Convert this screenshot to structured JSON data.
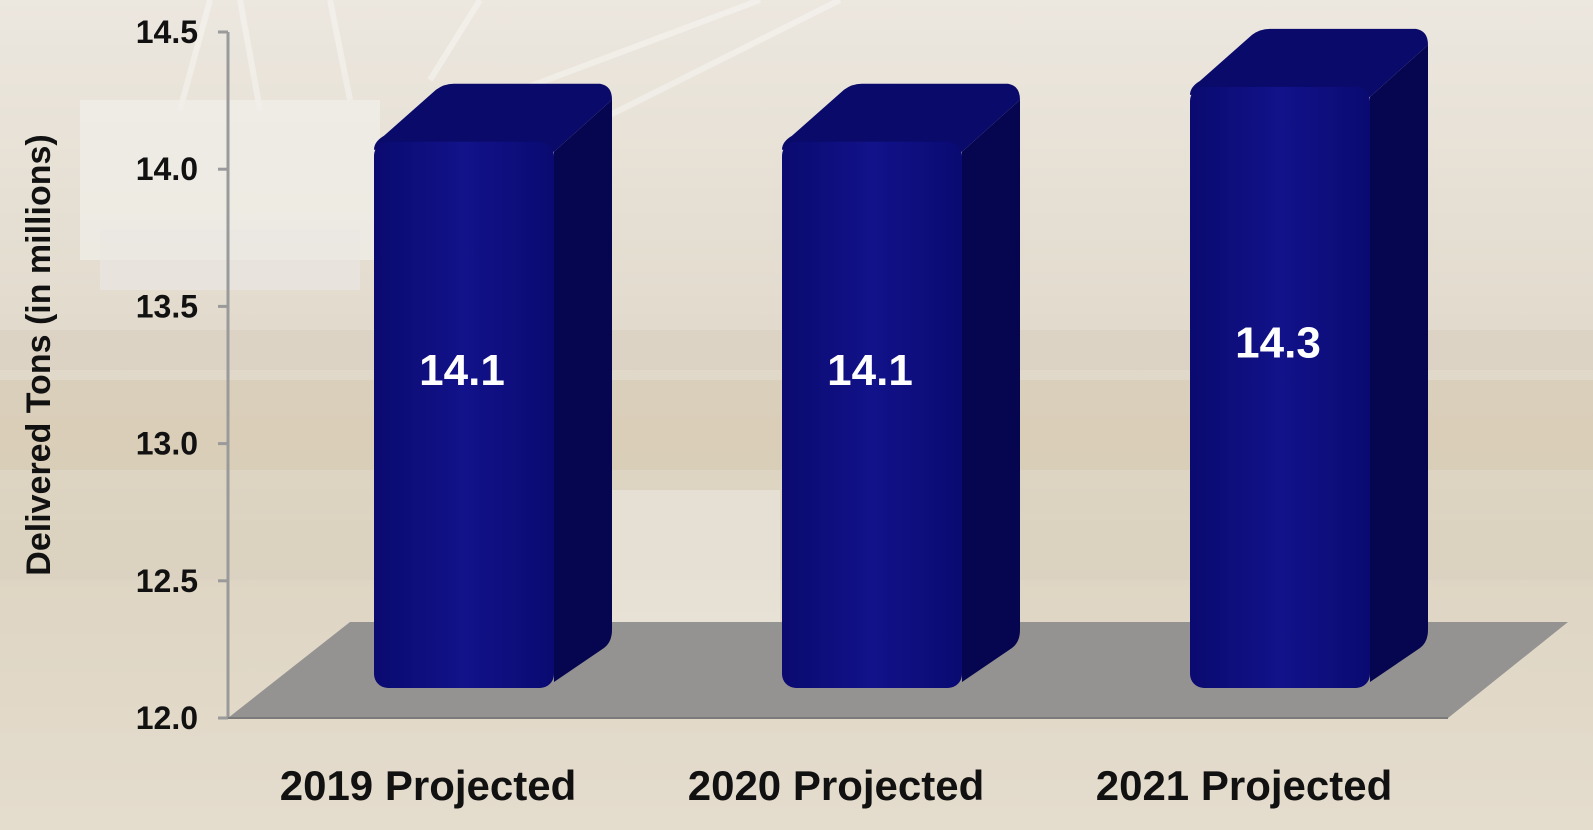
{
  "chart_data": {
    "type": "bar",
    "categories": [
      "2019 Projected",
      "2020 Projected",
      "2021 Projected"
    ],
    "values": [
      14.1,
      14.1,
      14.3
    ],
    "data_labels": [
      "14.1",
      "14.1",
      "14.3"
    ],
    "title": "",
    "xlabel": "",
    "ylabel": "Delivered Tons (in millions)",
    "ylim": [
      12.0,
      14.5
    ],
    "yticks": [
      12.0,
      12.5,
      13.0,
      13.5,
      14.0,
      14.5
    ],
    "ytick_labels": [
      "12.0",
      "12.5",
      "13.0",
      "13.5",
      "14.0",
      "14.5"
    ],
    "grid": false,
    "legend": "none",
    "style": "3d-bars"
  },
  "colors": {
    "bar_front": "#0d0d80",
    "bar_side": "#060650",
    "bar_top": "#0a0a6a",
    "floor": "#8f8f8f",
    "axis": "#9a9a9a",
    "label_text": "#111111",
    "value_text": "#ffffff",
    "background": "#e9e2d6"
  }
}
